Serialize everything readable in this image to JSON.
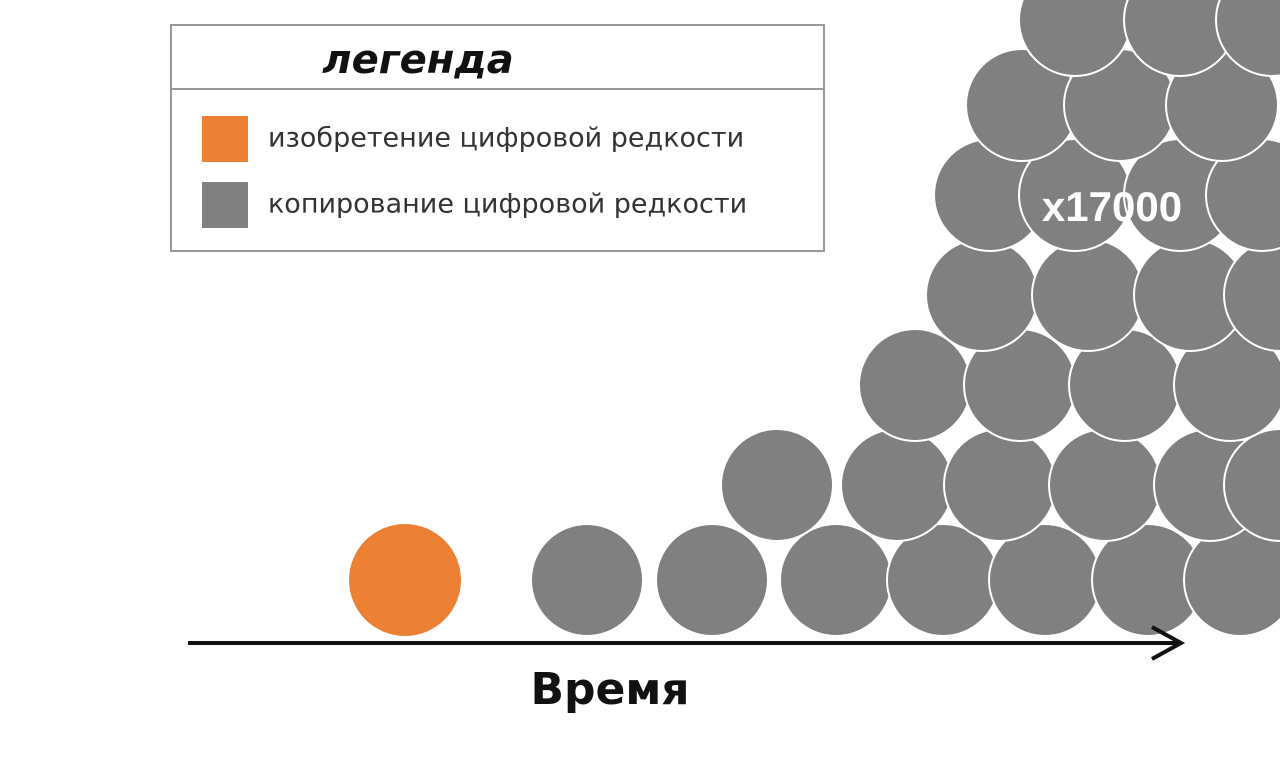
{
  "legend": {
    "title": "легенда",
    "items": [
      {
        "label": "изобретение цифровой редкости"
      },
      {
        "label": "копирование цифровой редкости"
      }
    ]
  },
  "annotation": "x17000",
  "axis_label": "Время"
}
